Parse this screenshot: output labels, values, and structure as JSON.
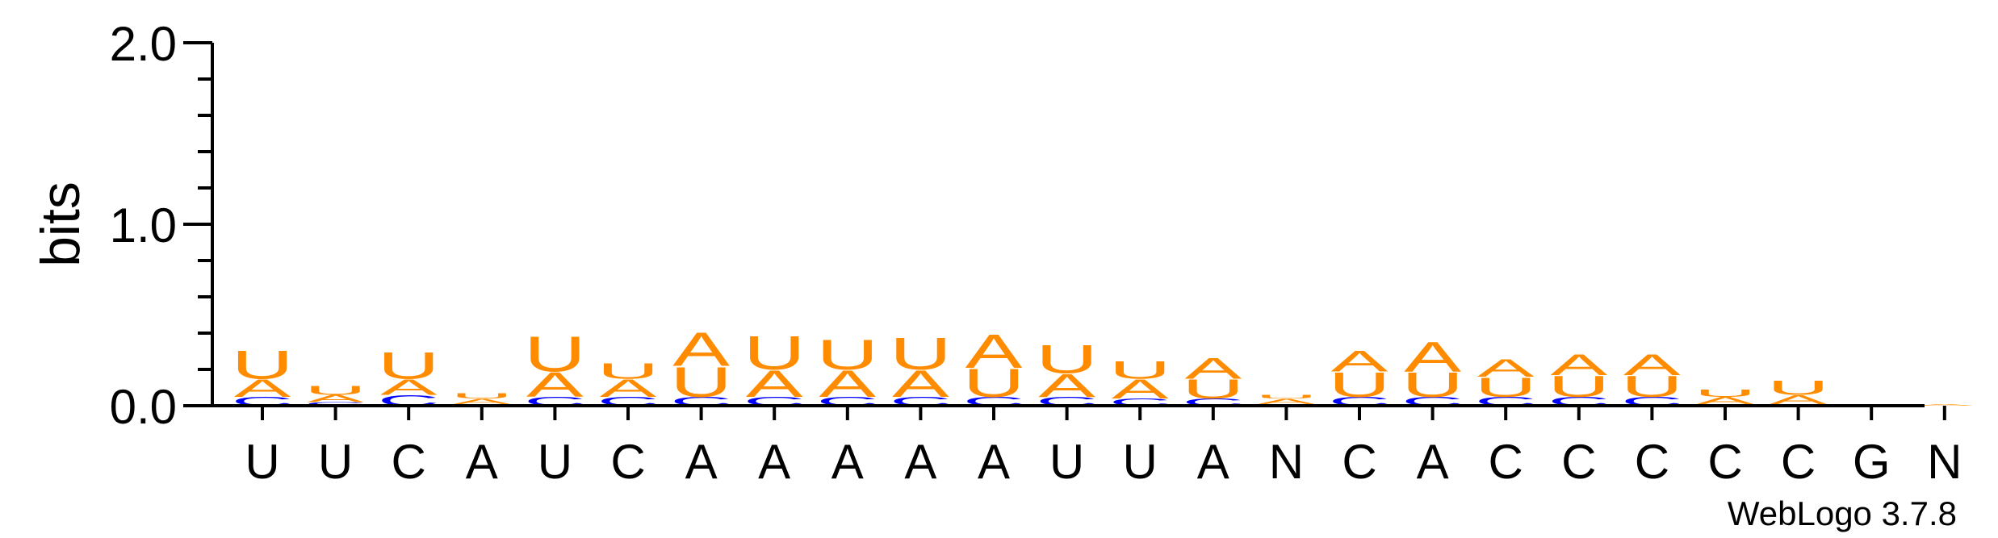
{
  "chart_data": {
    "type": "sequence-logo",
    "ylabel": "bits",
    "ylim": [
      0,
      2.0
    ],
    "yticks": [
      {
        "value": 0.0,
        "label": "0.0"
      },
      {
        "value": 1.0,
        "label": "1.0"
      },
      {
        "value": 2.0,
        "label": "2.0"
      }
    ],
    "y_minor_step": 0.2,
    "credit": "WebLogo 3.7.8",
    "colors": {
      "A": "#ff8c00",
      "U": "#ff8c00",
      "C": "#0000ff",
      "G": "#ff8c00",
      "axis": "#000000"
    },
    "positions": [
      {
        "label": "U",
        "stack": [
          {
            "letter": "C",
            "bits": 0.05
          },
          {
            "letter": "A",
            "bits": 0.1
          },
          {
            "letter": "U",
            "bits": 0.16
          }
        ]
      },
      {
        "label": "U",
        "stack": [
          {
            "letter": "C",
            "bits": 0.02
          },
          {
            "letter": "A",
            "bits": 0.04
          },
          {
            "letter": "U",
            "bits": 0.05
          }
        ]
      },
      {
        "label": "C",
        "stack": [
          {
            "letter": "C",
            "bits": 0.06
          },
          {
            "letter": "A",
            "bits": 0.09
          },
          {
            "letter": "U",
            "bits": 0.15
          }
        ]
      },
      {
        "label": "A",
        "stack": [
          {
            "letter": "C",
            "bits": 0.01
          },
          {
            "letter": "A",
            "bits": 0.03
          },
          {
            "letter": "U",
            "bits": 0.03
          }
        ]
      },
      {
        "label": "U",
        "stack": [
          {
            "letter": "C",
            "bits": 0.05
          },
          {
            "letter": "A",
            "bits": 0.14
          },
          {
            "letter": "U",
            "bits": 0.2
          }
        ]
      },
      {
        "label": "C",
        "stack": [
          {
            "letter": "C",
            "bits": 0.05
          },
          {
            "letter": "A",
            "bits": 0.1
          },
          {
            "letter": "U",
            "bits": 0.09
          }
        ]
      },
      {
        "label": "A",
        "stack": [
          {
            "letter": "C",
            "bits": 0.05
          },
          {
            "letter": "U",
            "bits": 0.17
          },
          {
            "letter": "A",
            "bits": 0.19
          }
        ]
      },
      {
        "label": "A",
        "stack": [
          {
            "letter": "C",
            "bits": 0.05
          },
          {
            "letter": "A",
            "bits": 0.15
          },
          {
            "letter": "U",
            "bits": 0.19
          }
        ]
      },
      {
        "label": "A",
        "stack": [
          {
            "letter": "C",
            "bits": 0.05
          },
          {
            "letter": "A",
            "bits": 0.15
          },
          {
            "letter": "U",
            "bits": 0.17
          }
        ]
      },
      {
        "label": "A",
        "stack": [
          {
            "letter": "C",
            "bits": 0.05
          },
          {
            "letter": "A",
            "bits": 0.15
          },
          {
            "letter": "U",
            "bits": 0.18
          }
        ]
      },
      {
        "label": "A",
        "stack": [
          {
            "letter": "C",
            "bits": 0.05
          },
          {
            "letter": "U",
            "bits": 0.16
          },
          {
            "letter": "A",
            "bits": 0.19
          }
        ]
      },
      {
        "label": "U",
        "stack": [
          {
            "letter": "C",
            "bits": 0.05
          },
          {
            "letter": "A",
            "bits": 0.13
          },
          {
            "letter": "U",
            "bits": 0.16
          }
        ]
      },
      {
        "label": "U",
        "stack": [
          {
            "letter": "C",
            "bits": 0.04
          },
          {
            "letter": "A",
            "bits": 0.11
          },
          {
            "letter": "U",
            "bits": 0.1
          }
        ]
      },
      {
        "label": "A",
        "stack": [
          {
            "letter": "C",
            "bits": 0.04
          },
          {
            "letter": "U",
            "bits": 0.11
          },
          {
            "letter": "A",
            "bits": 0.12
          }
        ]
      },
      {
        "label": "N",
        "stack": [
          {
            "letter": "C",
            "bits": 0.01
          },
          {
            "letter": "A",
            "bits": 0.03
          },
          {
            "letter": "U",
            "bits": 0.02
          }
        ]
      },
      {
        "label": "C",
        "stack": [
          {
            "letter": "C",
            "bits": 0.05
          },
          {
            "letter": "U",
            "bits": 0.14
          },
          {
            "letter": "A",
            "bits": 0.12
          }
        ]
      },
      {
        "label": "A",
        "stack": [
          {
            "letter": "C",
            "bits": 0.05
          },
          {
            "letter": "U",
            "bits": 0.14
          },
          {
            "letter": "A",
            "bits": 0.17
          }
        ]
      },
      {
        "label": "C",
        "stack": [
          {
            "letter": "C",
            "bits": 0.05
          },
          {
            "letter": "U",
            "bits": 0.11
          },
          {
            "letter": "A",
            "bits": 0.1
          }
        ]
      },
      {
        "label": "C",
        "stack": [
          {
            "letter": "C",
            "bits": 0.05
          },
          {
            "letter": "U",
            "bits": 0.12
          },
          {
            "letter": "A",
            "bits": 0.12
          }
        ]
      },
      {
        "label": "C",
        "stack": [
          {
            "letter": "C",
            "bits": 0.05
          },
          {
            "letter": "U",
            "bits": 0.12
          },
          {
            "letter": "A",
            "bits": 0.12
          }
        ]
      },
      {
        "label": "C",
        "stack": [
          {
            "letter": "C",
            "bits": 0.01
          },
          {
            "letter": "A",
            "bits": 0.04
          },
          {
            "letter": "U",
            "bits": 0.04
          }
        ]
      },
      {
        "label": "C",
        "stack": [
          {
            "letter": "C",
            "bits": 0.01
          },
          {
            "letter": "A",
            "bits": 0.05
          },
          {
            "letter": "U",
            "bits": 0.08
          }
        ]
      },
      {
        "label": "G",
        "stack": [
          {
            "letter": "C",
            "bits": 0.01
          }
        ]
      },
      {
        "label": "N",
        "stack": [
          {
            "letter": "A",
            "bits": 0.01
          }
        ]
      }
    ]
  }
}
